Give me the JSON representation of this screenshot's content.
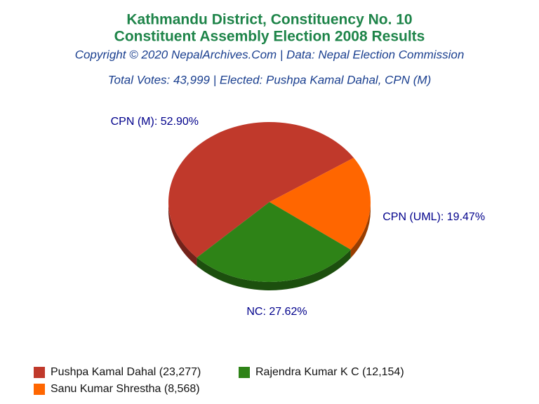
{
  "chart_data": {
    "type": "pie",
    "title": "Kathmandu District, Constituency No. 10",
    "title2": "Constituent Assembly Election 2008 Results",
    "subtitle": "Copyright © 2020 NepalArchives.Com | Data: Nepal Election Commission",
    "subtitle2": "Total Votes: 43,999 | Elected: Pushpa Kamal Dahal, CPN (M)",
    "categories": [
      "CPN (M)",
      "CPN (UML)",
      "NC"
    ],
    "values": [
      52.9,
      19.47,
      27.62
    ],
    "value_labels": [
      "CPN (M): 52.90%",
      "CPN (UML): 19.47%",
      "NC: 27.62%"
    ],
    "colors": [
      "#c0392b",
      "#ff6600",
      "#2e8317"
    ],
    "legend": [
      "Pushpa Kamal Dahal (23,277)",
      "Sanu Kumar Shrestha (8,568)",
      "Rajendra Kumar K C (12,154)"
    ]
  }
}
